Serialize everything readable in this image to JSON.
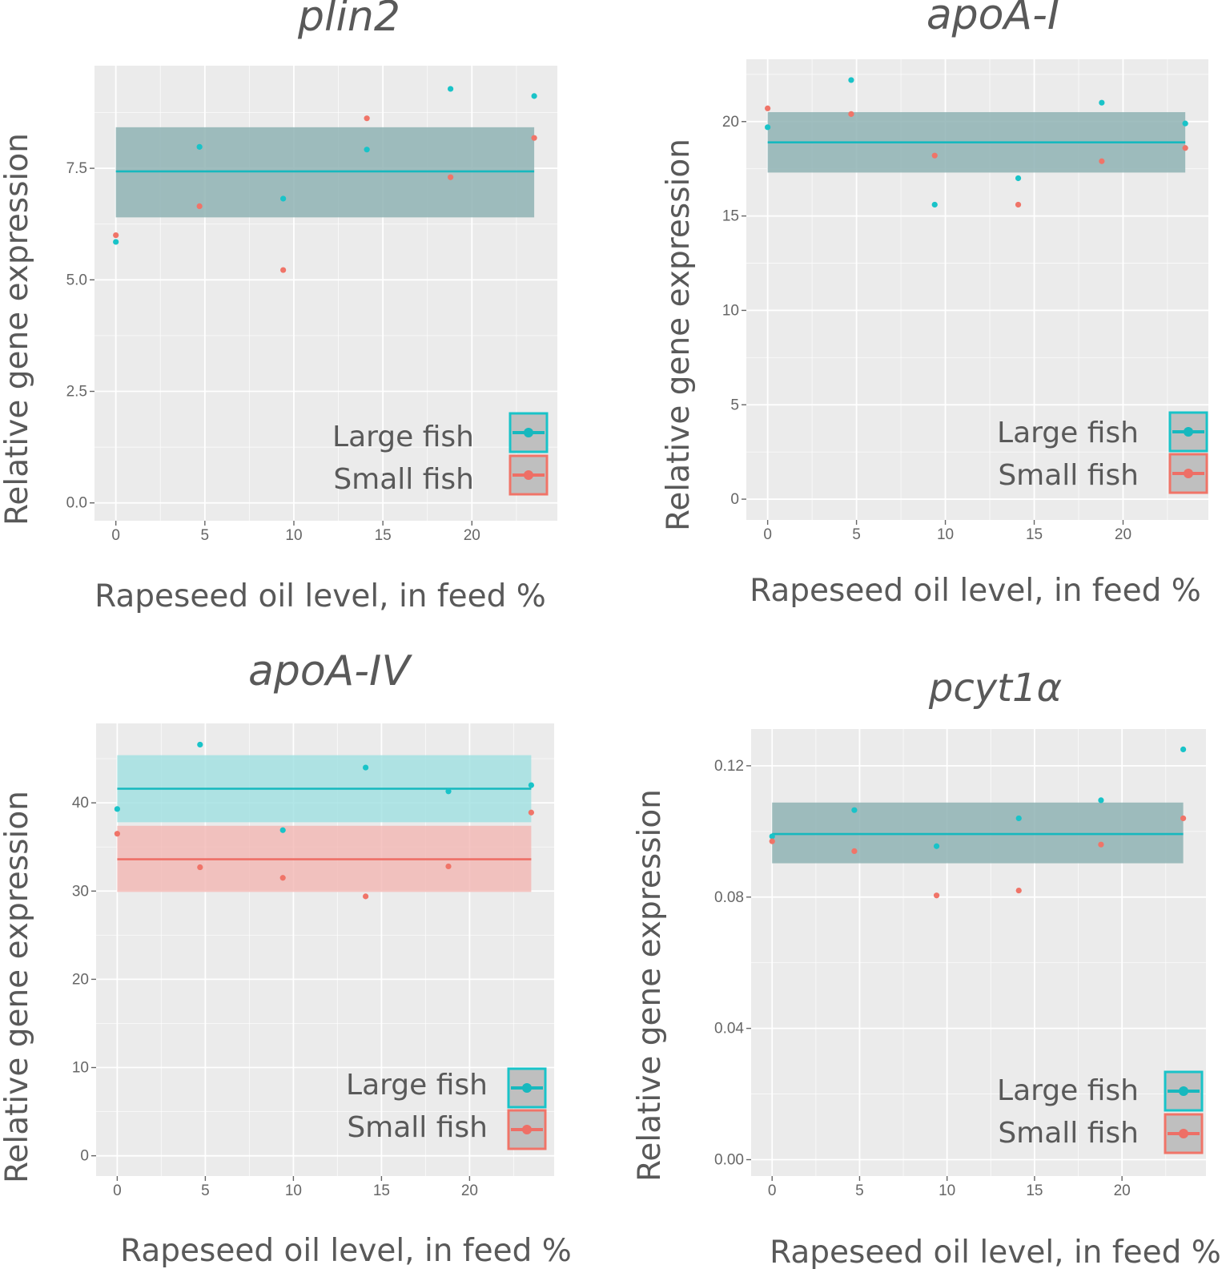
{
  "colors": {
    "large": "#19c3c8",
    "small": "#f07468",
    "large_line": "#17b8be",
    "small_line": "#ee6f66",
    "panel_bg": "#ebebeb",
    "grid": "#ffffff",
    "ribbon_shared": "#8fb3b4",
    "ribbon_large": "#9fe0e1",
    "ribbon_small": "#f2b7b3",
    "legend_key_bg": "#bfbfbf"
  },
  "legend": {
    "large_label": "Large fish",
    "small_label": "Small fish"
  },
  "chart_data": [
    {
      "type": "scatter",
      "title": "plin2",
      "xlabel": "Rapeseed oil level, in feed %",
      "ylabel": "Relative gene expression",
      "xlim": [
        -1.2,
        24.8
      ],
      "ylim": [
        -0.4,
        9.8
      ],
      "xticks": [
        0,
        5,
        10,
        15,
        20
      ],
      "xtick_labels": [
        "0",
        "5",
        "10",
        "15",
        "20"
      ],
      "yticks": [
        0.0,
        2.5,
        5.0,
        7.5
      ],
      "ytick_labels": [
        "0.0",
        "2.5",
        "5.0",
        "7.5"
      ],
      "series": [
        {
          "name": "Large fish",
          "x": [
            0,
            4.7,
            9.4,
            14.1,
            18.8,
            23.5
          ],
          "y": [
            5.85,
            7.98,
            6.82,
            7.92,
            9.28,
            9.12
          ]
        },
        {
          "name": "Small fish",
          "x": [
            0,
            4.7,
            9.4,
            14.1,
            18.8,
            23.5
          ],
          "y": [
            6.0,
            6.65,
            5.22,
            8.62,
            7.3,
            8.18
          ]
        }
      ],
      "fits": [
        {
          "name": "Large fish",
          "x": [
            0,
            23.5
          ],
          "y": 7.43,
          "ci": [
            6.4,
            8.42
          ],
          "ribbon": "shared"
        }
      ]
    },
    {
      "type": "scatter",
      "title": "apoA-I",
      "xlabel": "Rapeseed oil level, in feed %",
      "ylabel": "Relative gene expression",
      "xlim": [
        -1.2,
        24.8
      ],
      "ylim": [
        -1.1,
        23.3
      ],
      "xticks": [
        0,
        5,
        10,
        15,
        20
      ],
      "xtick_labels": [
        "0",
        "5",
        "10",
        "15",
        "20"
      ],
      "yticks": [
        0,
        5,
        10,
        15,
        20
      ],
      "ytick_labels": [
        "0",
        "5",
        "10",
        "15",
        "20"
      ],
      "series": [
        {
          "name": "Large fish",
          "x": [
            0,
            4.7,
            9.4,
            14.1,
            18.8,
            23.5
          ],
          "y": [
            19.7,
            22.2,
            15.6,
            17.0,
            21.0,
            19.9
          ]
        },
        {
          "name": "Small fish",
          "x": [
            0,
            4.7,
            9.4,
            14.1,
            18.8,
            23.5
          ],
          "y": [
            20.7,
            20.4,
            18.2,
            15.6,
            17.9,
            18.6
          ]
        }
      ],
      "fits": [
        {
          "name": "Large fish",
          "x": [
            0,
            23.5
          ],
          "y": 18.9,
          "ci": [
            17.3,
            20.5
          ],
          "ribbon": "shared"
        }
      ]
    },
    {
      "type": "scatter",
      "title": "apoA-IV",
      "xlabel": "Rapeseed oil level, in feed %",
      "ylabel": "Relative gene expression",
      "xlim": [
        -1.2,
        24.8
      ],
      "ylim": [
        -2.3,
        49.0
      ],
      "xticks": [
        0,
        5,
        10,
        15,
        20
      ],
      "xtick_labels": [
        "0",
        "5",
        "10",
        "15",
        "20"
      ],
      "yticks": [
        0,
        10,
        20,
        30,
        40
      ],
      "ytick_labels": [
        "0",
        "10",
        "20",
        "30",
        "40"
      ],
      "series": [
        {
          "name": "Large fish",
          "x": [
            0,
            4.7,
            9.4,
            14.1,
            18.8,
            23.5
          ],
          "y": [
            39.3,
            46.6,
            36.9,
            44.0,
            41.3,
            42.0
          ]
        },
        {
          "name": "Small fish",
          "x": [
            0,
            4.7,
            9.4,
            14.1,
            18.8,
            23.5
          ],
          "y": [
            36.5,
            32.7,
            31.5,
            29.4,
            32.8,
            38.9
          ]
        }
      ],
      "fits": [
        {
          "name": "Large fish",
          "x": [
            0,
            23.5
          ],
          "y": 41.6,
          "ci": [
            37.8,
            45.4
          ],
          "ribbon": "large"
        },
        {
          "name": "Small fish",
          "x": [
            0,
            23.5
          ],
          "y": 33.6,
          "ci": [
            29.9,
            37.4
          ],
          "ribbon": "small"
        }
      ]
    },
    {
      "type": "scatter",
      "title": "pcyt1α",
      "xlabel": "Rapeseed oil level, in feed %",
      "ylabel": "Relative gene expression",
      "xlim": [
        -1.2,
        24.8
      ],
      "ylim": [
        -0.005,
        0.1312
      ],
      "xticks": [
        0,
        5,
        10,
        15,
        20
      ],
      "xtick_labels": [
        "0",
        "5",
        "10",
        "15",
        "20"
      ],
      "yticks": [
        0.0,
        0.04,
        0.08,
        0.12
      ],
      "ytick_labels": [
        "0.00",
        "0.04",
        "0.08",
        "0.12"
      ],
      "series": [
        {
          "name": "Large fish",
          "x": [
            0,
            4.7,
            9.4,
            14.1,
            18.8,
            23.5
          ],
          "y": [
            0.0985,
            0.1065,
            0.0955,
            0.104,
            0.1095,
            0.125
          ]
        },
        {
          "name": "Small fish",
          "x": [
            0,
            4.7,
            9.4,
            14.1,
            18.8,
            23.5
          ],
          "y": [
            0.097,
            0.094,
            0.0805,
            0.082,
            0.096,
            0.104
          ]
        }
      ],
      "fits": [
        {
          "name": "Large fish",
          "x": [
            0,
            23.5
          ],
          "y": 0.0992,
          "ci": [
            0.0903,
            0.1088
          ],
          "ribbon": "shared"
        }
      ]
    }
  ]
}
